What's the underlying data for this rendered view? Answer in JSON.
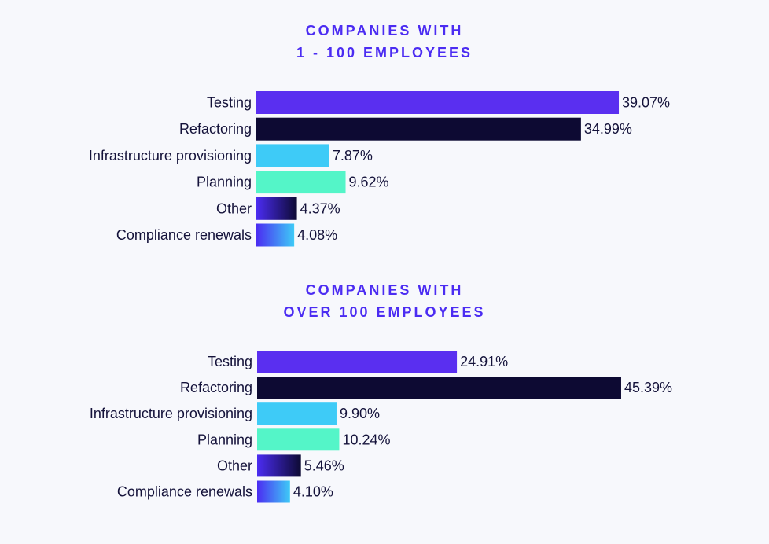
{
  "colors": {
    "background": "#f7f8fc",
    "title": "#4b2cf2",
    "text": "#14123a",
    "Testing": "#5a2ff0",
    "Refactoring": "#0d0a33",
    "Infrastructure provisioning": "#3ecbf7",
    "Planning": "#54f5c8"
  },
  "chart_data": [
    {
      "type": "bar",
      "orientation": "horizontal",
      "title": [
        "COMPANIES WITH",
        "1 - 100 EMPLOYEES"
      ],
      "categories": [
        "Testing",
        "Refactoring",
        "Infrastructure provisioning",
        "Planning",
        "Other",
        "Compliance renewals"
      ],
      "values": [
        39.07,
        34.99,
        7.87,
        9.62,
        4.37,
        4.08
      ],
      "value_labels": [
        "39.07%",
        "34.99%",
        "7.87%",
        "9.62%",
        "4.37%",
        "4.08%"
      ],
      "xlim": [
        0,
        50
      ],
      "grid": false,
      "legend": "none"
    },
    {
      "type": "bar",
      "orientation": "horizontal",
      "title": [
        "COMPANIES WITH",
        "OVER 100 EMPLOYEES"
      ],
      "categories": [
        "Testing",
        "Refactoring",
        "Infrastructure provisioning",
        "Planning",
        "Other",
        "Compliance renewals"
      ],
      "values": [
        24.91,
        45.39,
        9.9,
        10.24,
        5.46,
        4.1
      ],
      "value_labels": [
        "24.91%",
        "45.39%",
        "9.90%",
        "10.24%",
        "5.46%",
        "4.10%"
      ],
      "xlim": [
        0,
        50
      ],
      "grid": false,
      "legend": "none"
    }
  ]
}
